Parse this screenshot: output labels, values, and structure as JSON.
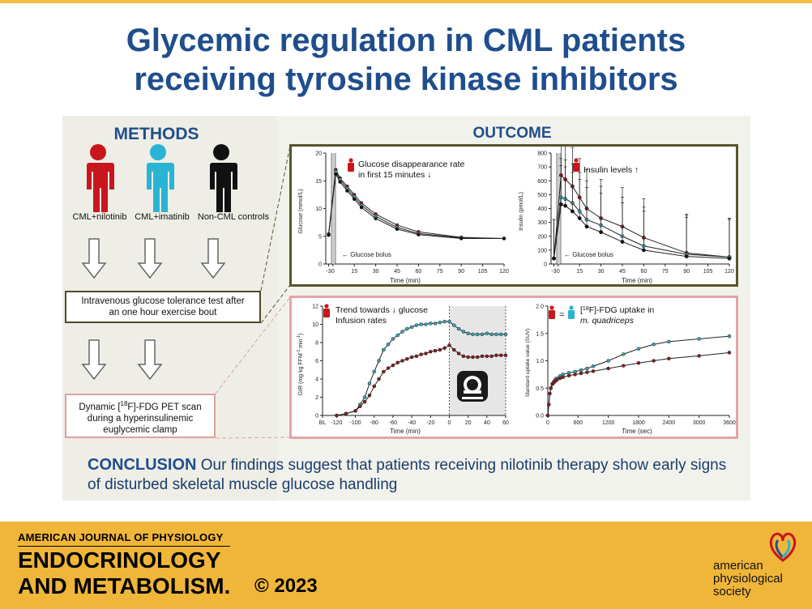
{
  "title": {
    "line1": "Glycemic regulation in CML patients",
    "line2": "receiving tyrosine kinase inhibitors"
  },
  "methods": {
    "heading": "METHODS",
    "groups": [
      {
        "label": "CML+nilotinib",
        "color": "#c8161d"
      },
      {
        "label": "CML+imatinib",
        "color": "#2ab4d4"
      },
      {
        "label": "Non-CML controls",
        "color": "#111111"
      }
    ],
    "step1": {
      "line1": "Intravenous glucose tolerance test after",
      "line2": "an one hour exercise bout"
    },
    "step2": {
      "line1a": "Dynamic [",
      "sup": "18",
      "line1b": "F]-FDG PET scan",
      "line2": "during a hyperinsulinemic",
      "line3": "euglycemic clamp"
    }
  },
  "outcome": {
    "heading": "OUTCOME"
  },
  "colors": {
    "nilotinib": "#8b1c1f",
    "imatinib": "#3aa5b5",
    "control": "#111111",
    "accent": "#1f4e8c",
    "footer": "#f0b63a"
  },
  "chart_data": [
    {
      "type": "line",
      "xlabel": "Time (min)",
      "ylabel": "Glucose (mmol/L)",
      "xlim": [
        -5,
        120
      ],
      "ylim": [
        0,
        20
      ],
      "xticks": [
        "-3",
        "0",
        "15",
        "30",
        "45",
        "60",
        "75",
        "90",
        "105",
        "120"
      ],
      "yticks": [
        "0",
        "5",
        "10",
        "15",
        "20"
      ],
      "annotation": "Glucose bolus",
      "note": {
        "line1": "Glucose disappearance rate",
        "line2": "in first 15 minutes ↓"
      },
      "x": [
        -3,
        2,
        5,
        10,
        15,
        20,
        30,
        45,
        60,
        90,
        120
      ],
      "series": [
        {
          "values": [
            5.4,
            17.0,
            15.5,
            14.0,
            12.5,
            11.0,
            9.0,
            7.0,
            5.8,
            4.8,
            4.6
          ]
        },
        {
          "values": [
            5.2,
            16.6,
            15.2,
            13.6,
            12.1,
            10.6,
            8.6,
            6.6,
            5.5,
            4.7,
            4.6
          ]
        },
        {
          "values": [
            5.3,
            16.2,
            14.8,
            13.2,
            11.7,
            10.2,
            8.2,
            6.3,
            5.3,
            4.6,
            4.6
          ]
        }
      ]
    },
    {
      "type": "line",
      "xlabel": "Time (min)",
      "ylabel": "Insulin (pmol/L)",
      "xlim": [
        -5,
        120
      ],
      "ylim": [
        0,
        800
      ],
      "xticks": [
        "-3",
        "0",
        "15",
        "30",
        "45",
        "60",
        "75",
        "90",
        "105",
        "120"
      ],
      "yticks": [
        "0",
        "100",
        "200",
        "300",
        "400",
        "500",
        "600",
        "700",
        "800"
      ],
      "annotation": "Glucose bolus",
      "note": "Insulin levels ↑",
      "x": [
        -3,
        2,
        5,
        10,
        15,
        20,
        30,
        45,
        60,
        90,
        120
      ],
      "series": [
        {
          "values": [
            40,
            640,
            610,
            560,
            480,
            400,
            330,
            270,
            190,
            80,
            50
          ]
        },
        {
          "values": [
            40,
            480,
            470,
            440,
            380,
            320,
            280,
            200,
            130,
            70,
            50
          ]
        },
        {
          "values": [
            40,
            430,
            420,
            380,
            330,
            270,
            230,
            160,
            100,
            55,
            40
          ]
        }
      ]
    },
    {
      "type": "line",
      "xlabel": "Time (min)",
      "ylabel_main": "GIR (mg kg FFM",
      "ylabel_sup": "-1",
      "ylabel_mid": " min",
      "ylabel_end": ")",
      "ylim": [
        0,
        12
      ],
      "xticks": [
        "BL",
        "-120",
        "-100",
        "-80",
        "-60",
        "-40",
        "-20",
        "0",
        "20",
        "40",
        "60"
      ],
      "yticks": [
        "0",
        "2",
        "4",
        "6",
        "8",
        "10",
        "12"
      ],
      "note": {
        "line1": "Trend towards ↓ glucose",
        "line2": "Infusion rates"
      },
      "x": [
        -120,
        -110,
        -100,
        -95,
        -90,
        -85,
        -80,
        -75,
        -70,
        -65,
        -60,
        -55,
        -50,
        -45,
        -40,
        -35,
        -30,
        -25,
        -20,
        -15,
        -10,
        -5,
        0,
        5,
        10,
        15,
        20,
        25,
        30,
        35,
        40,
        45,
        50,
        55,
        60
      ],
      "series": [
        {
          "values": [
            0,
            0.2,
            0.5,
            1.2,
            2.0,
            3.5,
            4.8,
            6.0,
            7.2,
            7.8,
            8.4,
            8.8,
            9.2,
            9.5,
            9.7,
            9.9,
            10.0,
            10.0,
            10.1,
            10.1,
            10.2,
            10.3,
            10.3,
            9.9,
            9.5,
            9.2,
            9.0,
            8.9,
            8.9,
            8.9,
            9.0,
            8.9,
            8.9,
            8.9,
            8.9
          ]
        },
        {
          "values": [
            0,
            0.2,
            0.5,
            1.0,
            1.5,
            2.2,
            3.2,
            4.0,
            4.8,
            5.2,
            5.5,
            5.8,
            6.0,
            6.2,
            6.4,
            6.5,
            6.7,
            6.8,
            7.0,
            7.1,
            7.2,
            7.4,
            7.7,
            7.2,
            6.8,
            6.5,
            6.4,
            6.4,
            6.4,
            6.5,
            6.5,
            6.5,
            6.6,
            6.6,
            6.6
          ]
        }
      ]
    },
    {
      "type": "line",
      "xlabel": "Time (sec)",
      "ylabel": "Standard uptake value (SUV)",
      "xlim": [
        0,
        3600
      ],
      "ylim": [
        0,
        2.0
      ],
      "xticks": [
        "0",
        "600",
        "1200",
        "1800",
        "2400",
        "3000",
        "3600"
      ],
      "yticks": [
        "0.0",
        "0.5",
        "1.0",
        "1.5",
        "2.0"
      ],
      "note": {
        "eq": "=",
        "pre": "[",
        "sup": "18",
        "post": "F]-FDG uptake in",
        "line2": "m. quadriceps"
      },
      "x": [
        0,
        20,
        40,
        60,
        90,
        120,
        150,
        180,
        240,
        300,
        420,
        540,
        660,
        780,
        900,
        1200,
        1500,
        1800,
        2100,
        2400,
        3000,
        3600
      ],
      "series": [
        {
          "values": [
            0,
            0.2,
            0.4,
            0.5,
            0.58,
            0.62,
            0.66,
            0.68,
            0.72,
            0.75,
            0.78,
            0.8,
            0.83,
            0.86,
            0.9,
            1.0,
            1.12,
            1.22,
            1.3,
            1.35,
            1.4,
            1.45
          ]
        },
        {
          "values": [
            0,
            0.2,
            0.4,
            0.5,
            0.57,
            0.6,
            0.63,
            0.65,
            0.68,
            0.7,
            0.73,
            0.75,
            0.77,
            0.79,
            0.81,
            0.86,
            0.91,
            0.96,
            1.0,
            1.04,
            1.09,
            1.15
          ]
        }
      ]
    }
  ],
  "conclusion": {
    "keyword": "CONCLUSION",
    "text": "Our findings suggest that patients receiving nilotinib therapy show early signs of disturbed skeletal muscle glucose handling"
  },
  "footer": {
    "journal_line1": "AMERICAN JOURNAL OF PHYSIOLOGY",
    "journal_line2": "ENDOCRINOLOGY",
    "journal_line3": "AND METABOLISM.",
    "copyright": "© 2023",
    "society_line1": "american",
    "society_line2": "physiological",
    "society_line3": "society"
  }
}
